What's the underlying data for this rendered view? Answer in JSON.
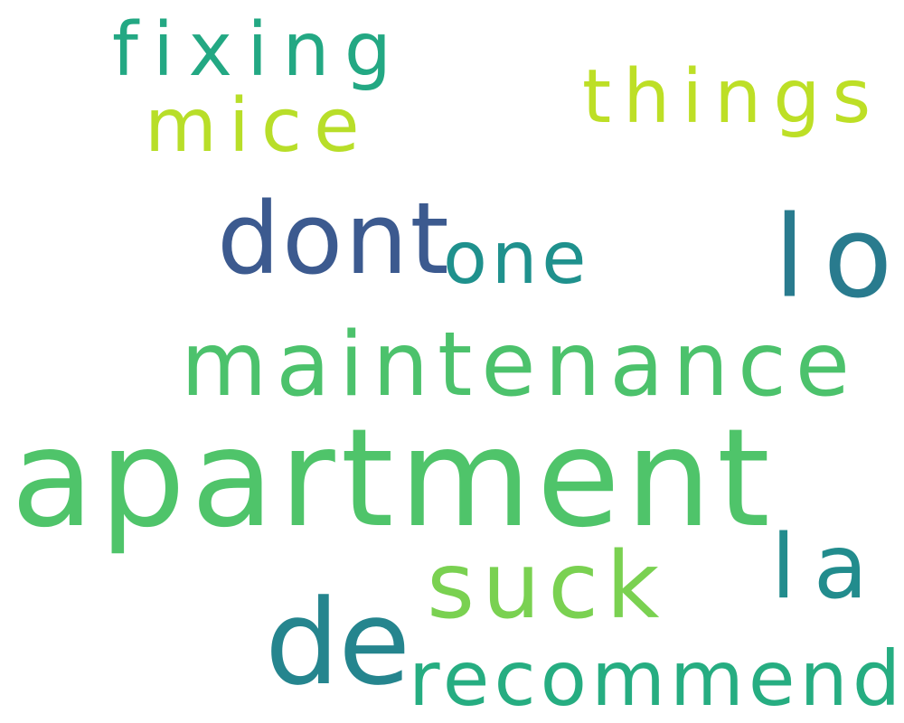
{
  "word_cloud": {
    "words": [
      {
        "id": "fixing",
        "text": "fixing",
        "color": "#23a883"
      },
      {
        "id": "mice",
        "text": "mice",
        "color": "#b8de29"
      },
      {
        "id": "things",
        "text": "things",
        "color": "#bddf26"
      },
      {
        "id": "dont",
        "text": "dont",
        "color": "#3c5a8f"
      },
      {
        "id": "one",
        "text": "one",
        "color": "#1f918d"
      },
      {
        "id": "lo",
        "text": "lo",
        "color": "#297b8e"
      },
      {
        "id": "maintenance",
        "text": "maintenance",
        "color": "#4cc26c"
      },
      {
        "id": "apartment",
        "text": "apartment",
        "color": "#4fc46a"
      },
      {
        "id": "suck",
        "text": "suck",
        "color": "#7ad151"
      },
      {
        "id": "la",
        "text": "la",
        "color": "#228c8d"
      },
      {
        "id": "de",
        "text": "de",
        "color": "#25858e"
      },
      {
        "id": "recommend",
        "text": "recommend",
        "color": "#26ad81"
      }
    ]
  }
}
